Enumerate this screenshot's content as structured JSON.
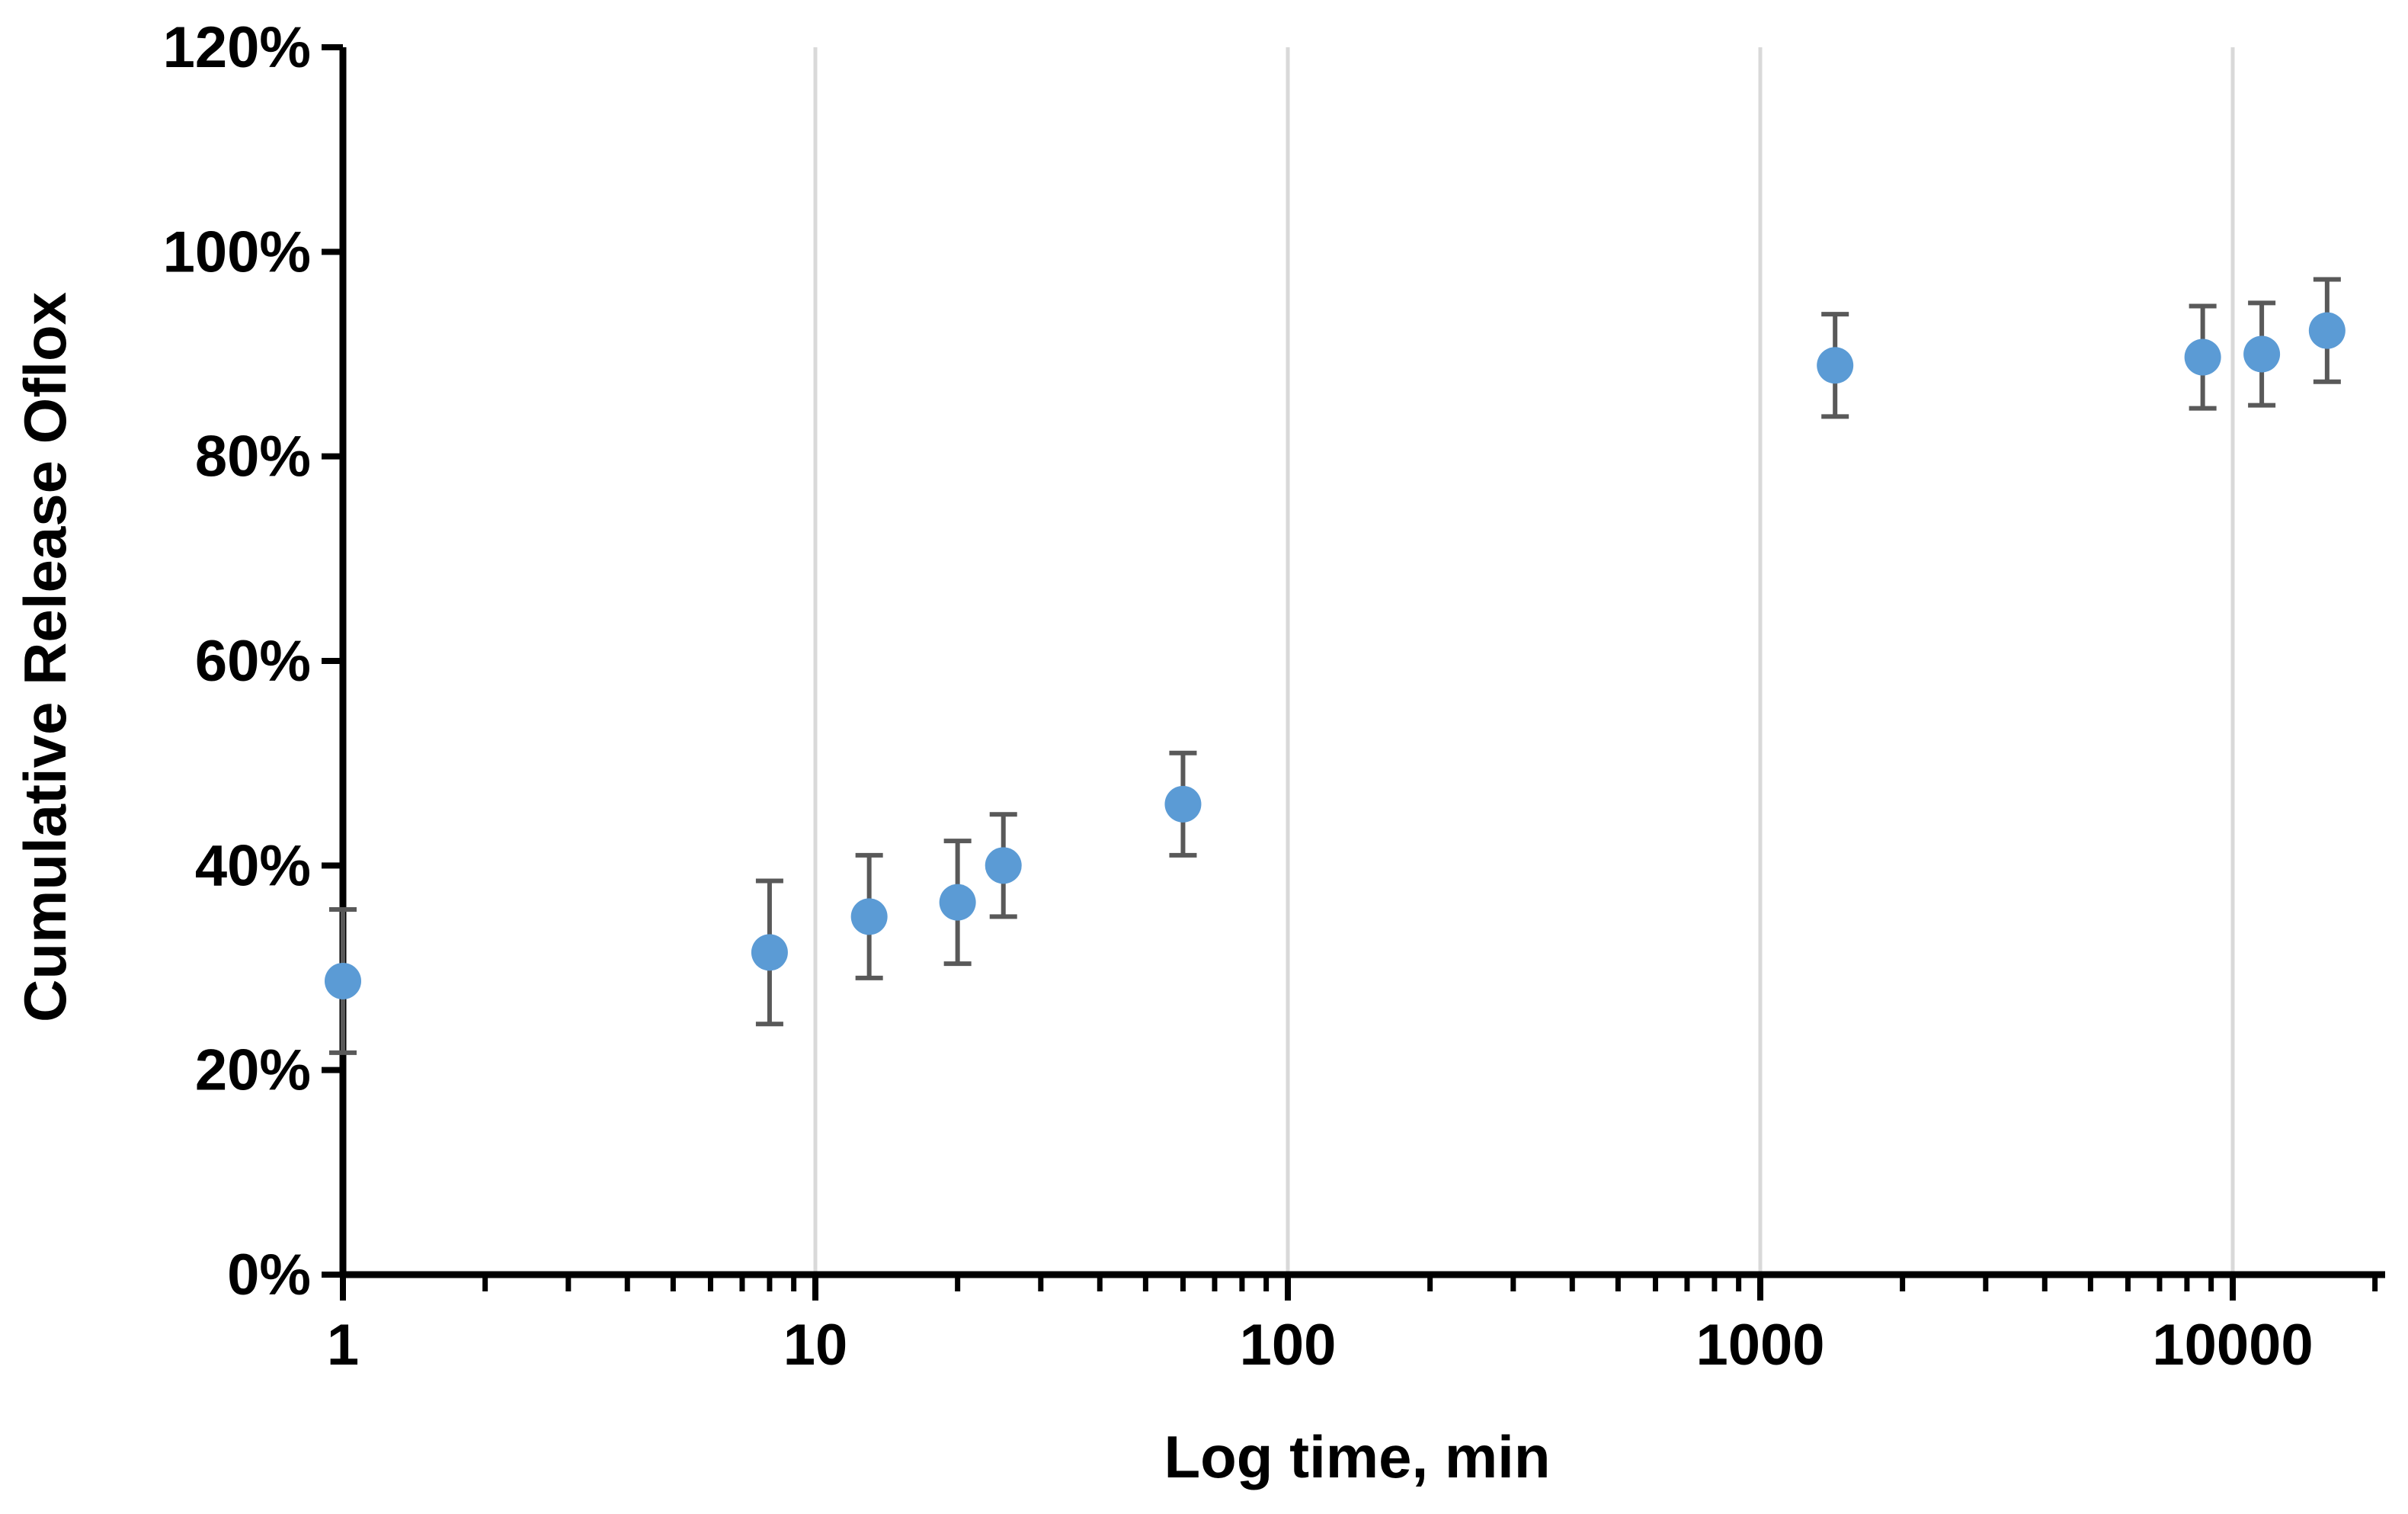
{
  "chart_data": {
    "type": "scatter",
    "title": "",
    "xlabel": "Log time,  min",
    "ylabel": "Cumulative Release Oflox",
    "x_scale": "log",
    "xlim": [
      1,
      20000
    ],
    "ylim": [
      0,
      1.2
    ],
    "x_ticks": [
      1,
      10,
      100,
      1000,
      10000
    ],
    "x_tick_labels": [
      "1",
      "10",
      "100",
      "1000",
      "10000"
    ],
    "y_ticks": [
      0,
      0.2,
      0.4,
      0.6,
      0.8,
      1.0,
      1.2
    ],
    "y_tick_labels": [
      "0%",
      "20%",
      "40%",
      "60%",
      "80%",
      "100%",
      "120%"
    ],
    "grid": "vertical major gridlines",
    "legend": "none",
    "series": [
      {
        "color": "#5B9BD5",
        "error_bar_color": "#595959",
        "x": [
          1,
          8,
          13,
          20,
          25,
          60,
          1440,
          8640,
          11520,
          15840
        ],
        "values": [
          0.287,
          0.315,
          0.35,
          0.364,
          0.4,
          0.46,
          0.889,
          0.897,
          0.9,
          0.923
        ],
        "error": [
          0.07,
          0.07,
          0.06,
          0.06,
          0.05,
          0.05,
          0.05,
          0.05,
          0.05,
          0.05
        ]
      }
    ]
  }
}
